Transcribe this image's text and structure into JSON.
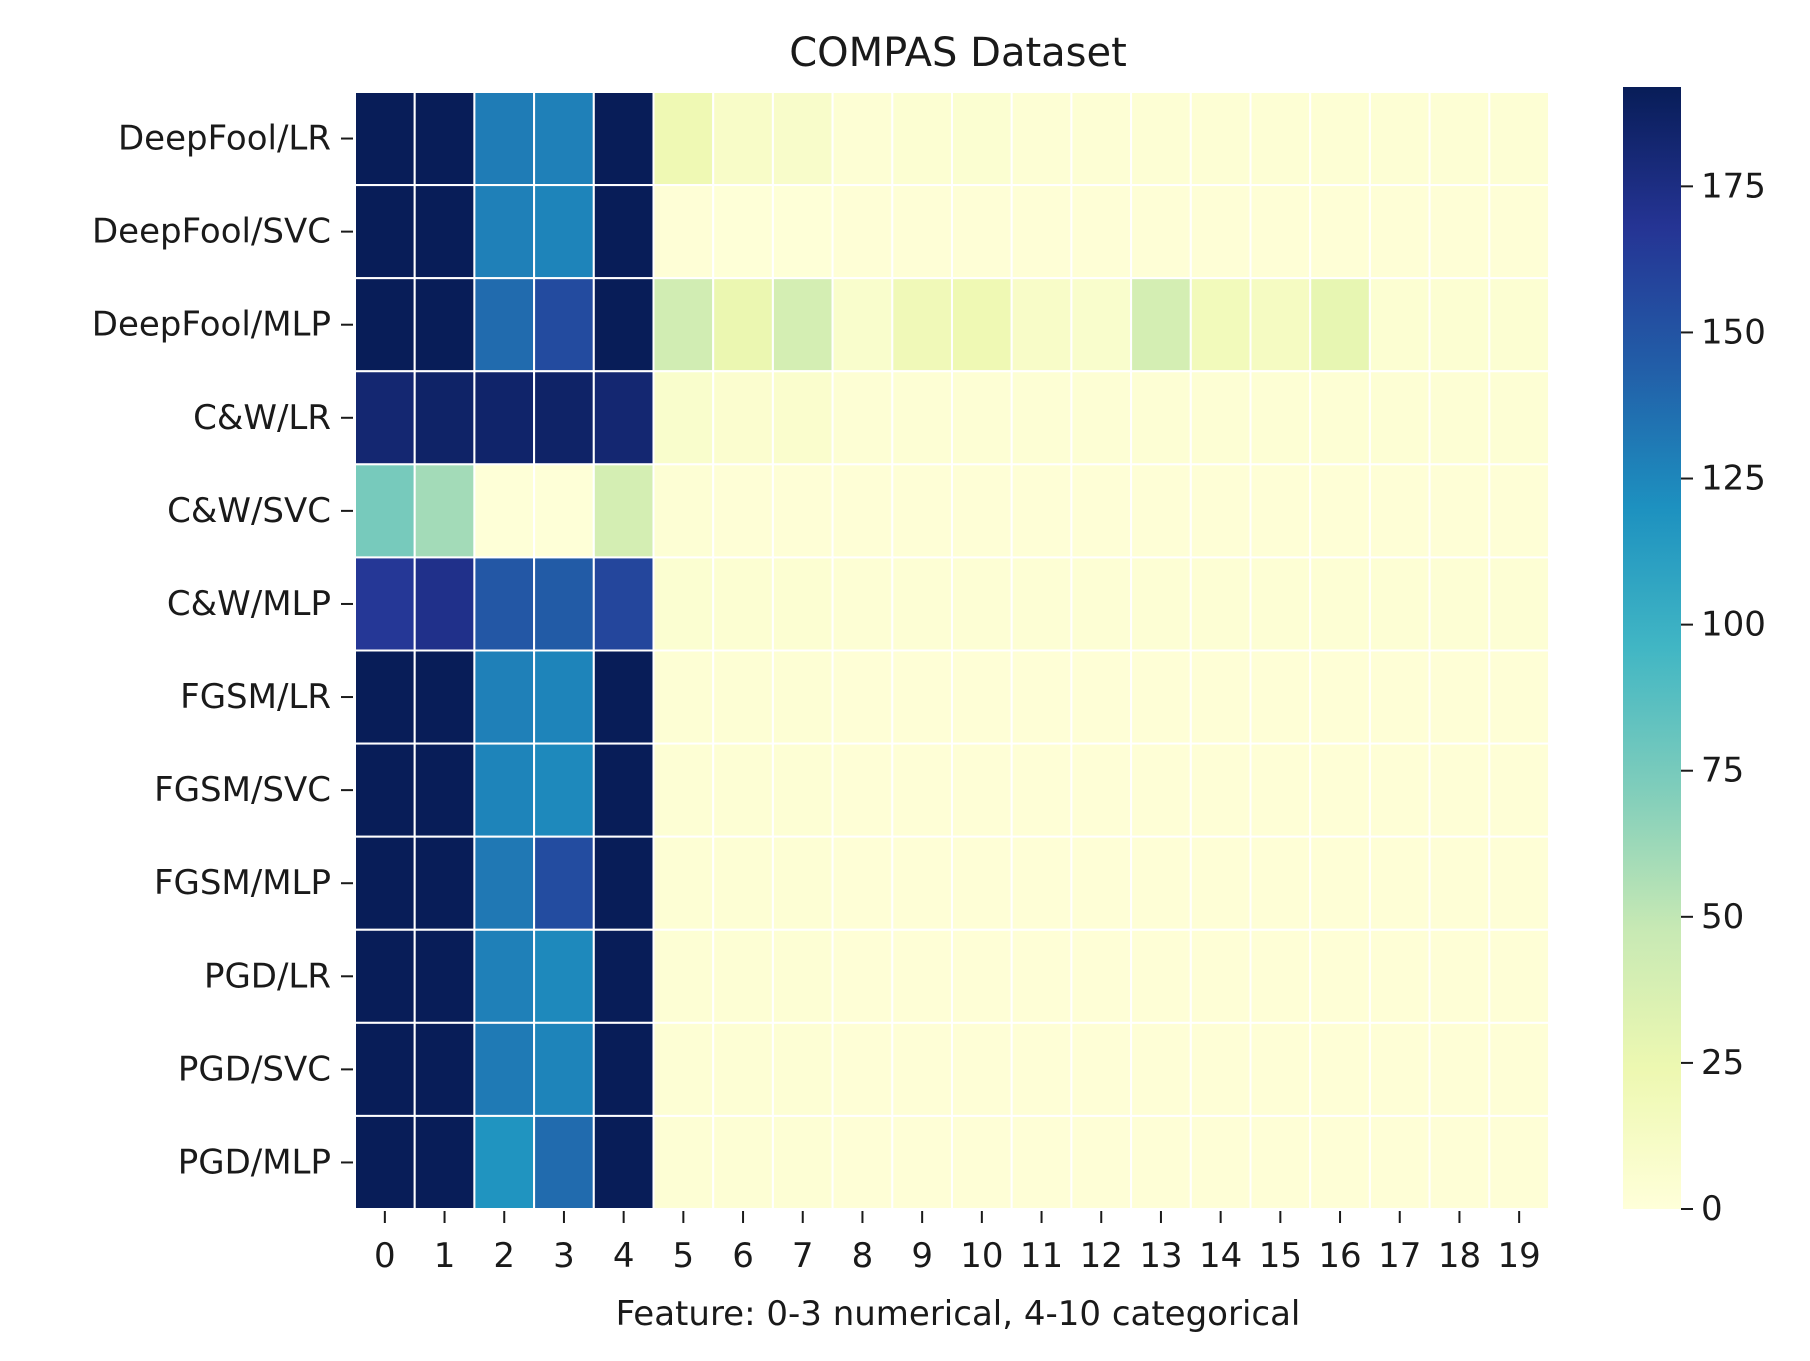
{
  "chart_data": {
    "type": "heatmap",
    "title": "COMPAS Dataset",
    "xlabel": "Feature: 0-3 numerical, 4-10 categorical",
    "ylabel": "",
    "rows": [
      "DeepFool/LR",
      "DeepFool/SVC",
      "DeepFool/MLP",
      "C&W/LR",
      "C&W/SVC",
      "C&W/MLP",
      "FGSM/LR",
      "FGSM/SVC",
      "FGSM/MLP",
      "PGD/LR",
      "PGD/SVC",
      "PGD/MLP"
    ],
    "columns": [
      "0",
      "1",
      "2",
      "3",
      "4",
      "5",
      "6",
      "7",
      "8",
      "9",
      "10",
      "11",
      "12",
      "13",
      "14",
      "15",
      "16",
      "17",
      "18",
      "19"
    ],
    "values": [
      [
        192,
        192,
        130,
        128,
        192,
        22,
        10,
        9,
        3,
        4,
        5,
        3,
        3,
        3,
        3,
        3,
        3,
        3,
        3,
        3
      ],
      [
        192,
        192,
        128,
        126,
        192,
        2,
        1,
        1,
        2,
        2,
        2,
        2,
        2,
        2,
        2,
        2,
        2,
        2,
        2,
        2
      ],
      [
        192,
        192,
        138,
        155,
        192,
        42,
        25,
        40,
        8,
        20,
        22,
        10,
        8,
        40,
        18,
        14,
        28,
        4,
        4,
        4
      ],
      [
        182,
        186,
        185,
        186,
        182,
        8,
        6,
        7,
        3,
        3,
        3,
        3,
        3,
        3,
        3,
        3,
        3,
        3,
        3,
        3
      ],
      [
        75,
        60,
        1,
        1,
        40,
        3,
        2,
        2,
        2,
        2,
        2,
        2,
        2,
        2,
        2,
        2,
        2,
        2,
        2,
        2
      ],
      [
        166,
        172,
        148,
        146,
        158,
        5,
        4,
        4,
        3,
        3,
        3,
        3,
        3,
        3,
        3,
        3,
        3,
        3,
        3,
        3
      ],
      [
        192,
        192,
        128,
        126,
        192,
        3,
        3,
        3,
        2,
        2,
        2,
        2,
        2,
        2,
        2,
        2,
        2,
        2,
        2,
        2
      ],
      [
        192,
        192,
        126,
        124,
        192,
        3,
        3,
        3,
        2,
        2,
        2,
        2,
        2,
        2,
        2,
        2,
        2,
        2,
        2,
        2
      ],
      [
        192,
        192,
        132,
        154,
        192,
        3,
        3,
        3,
        2,
        2,
        2,
        2,
        2,
        2,
        2,
        2,
        2,
        2,
        2,
        2
      ],
      [
        192,
        192,
        128,
        124,
        192,
        3,
        3,
        3,
        2,
        2,
        2,
        2,
        2,
        2,
        2,
        2,
        2,
        2,
        2,
        2
      ],
      [
        192,
        192,
        131,
        126,
        192,
        3,
        3,
        3,
        2,
        2,
        2,
        2,
        2,
        2,
        2,
        2,
        2,
        2,
        2,
        2
      ],
      [
        192,
        192,
        118,
        138,
        192,
        3,
        3,
        3,
        2,
        2,
        2,
        2,
        2,
        2,
        2,
        2,
        2,
        2,
        2,
        2
      ]
    ],
    "colormap": "YlGnBu",
    "color_stops": [
      "#ffffd9",
      "#edf8b1",
      "#c7e9b4",
      "#7fcdbb",
      "#41b6c4",
      "#1d91c0",
      "#225ea8",
      "#253494",
      "#081d58"
    ],
    "vmin": 0,
    "vmax": 192,
    "colorbar_ticks": [
      0,
      25,
      50,
      75,
      100,
      125,
      150,
      175
    ],
    "grid": true,
    "gridline_color": "#ffffff"
  }
}
